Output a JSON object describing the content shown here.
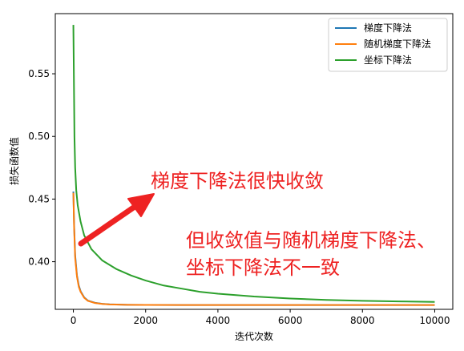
{
  "chart_data": {
    "type": "line",
    "title": "",
    "xlabel": "迭代次数",
    "ylabel": "损失函数值",
    "xlim": [
      -500,
      10500
    ],
    "ylim": [
      0.362,
      0.598
    ],
    "xticks": [
      0,
      2000,
      4000,
      6000,
      8000,
      10000
    ],
    "xtick_labels": [
      "0",
      "2000",
      "4000",
      "6000",
      "8000",
      "10000"
    ],
    "yticks": [
      0.4,
      0.45,
      0.5,
      0.55
    ],
    "ytick_labels": [
      "0.40",
      "0.45",
      "0.50",
      "0.55"
    ],
    "grid": false,
    "legend": "top-right",
    "series": [
      {
        "name": "梯度下降法",
        "color": "#1f77b4",
        "x": [
          0,
          20,
          50,
          100,
          150,
          200,
          300,
          400,
          600,
          800,
          1000,
          1500,
          2000,
          3000,
          4000,
          6000,
          8000,
          10000
        ],
        "y": [
          0.456,
          0.43,
          0.405,
          0.389,
          0.381,
          0.3765,
          0.3715,
          0.369,
          0.3672,
          0.3664,
          0.366,
          0.3656,
          0.3655,
          0.3654,
          0.3654,
          0.3654,
          0.3654,
          0.3654
        ]
      },
      {
        "name": "随机梯度下降法",
        "color": "#ff7f0e",
        "x": [
          0,
          20,
          50,
          100,
          150,
          200,
          300,
          400,
          600,
          800,
          1000,
          1500,
          2000,
          3000,
          4000,
          6000,
          8000,
          10000
        ],
        "y": [
          0.455,
          0.428,
          0.403,
          0.388,
          0.38,
          0.376,
          0.3712,
          0.3688,
          0.367,
          0.3663,
          0.3659,
          0.3656,
          0.3655,
          0.3654,
          0.3654,
          0.3654,
          0.3654,
          0.3654
        ]
      },
      {
        "name": "坐标下降法",
        "color": "#2ca02c",
        "x": [
          0,
          10,
          20,
          30,
          50,
          80,
          120,
          200,
          300,
          500,
          800,
          1200,
          1600,
          2000,
          2500,
          3000,
          3500,
          4000,
          5000,
          6000,
          7000,
          8000,
          9000,
          10000
        ],
        "y": [
          0.589,
          0.56,
          0.53,
          0.5,
          0.475,
          0.457,
          0.445,
          0.432,
          0.421,
          0.41,
          0.401,
          0.394,
          0.389,
          0.385,
          0.381,
          0.3785,
          0.376,
          0.3745,
          0.3722,
          0.3706,
          0.3695,
          0.3688,
          0.3683,
          0.3679
        ]
      }
    ],
    "annotations": [
      {
        "text": "梯度下降法很快收敛"
      },
      {
        "text": "但收敛值与随机梯度下降法、"
      },
      {
        "text": "坐标下降法不一致"
      }
    ]
  }
}
